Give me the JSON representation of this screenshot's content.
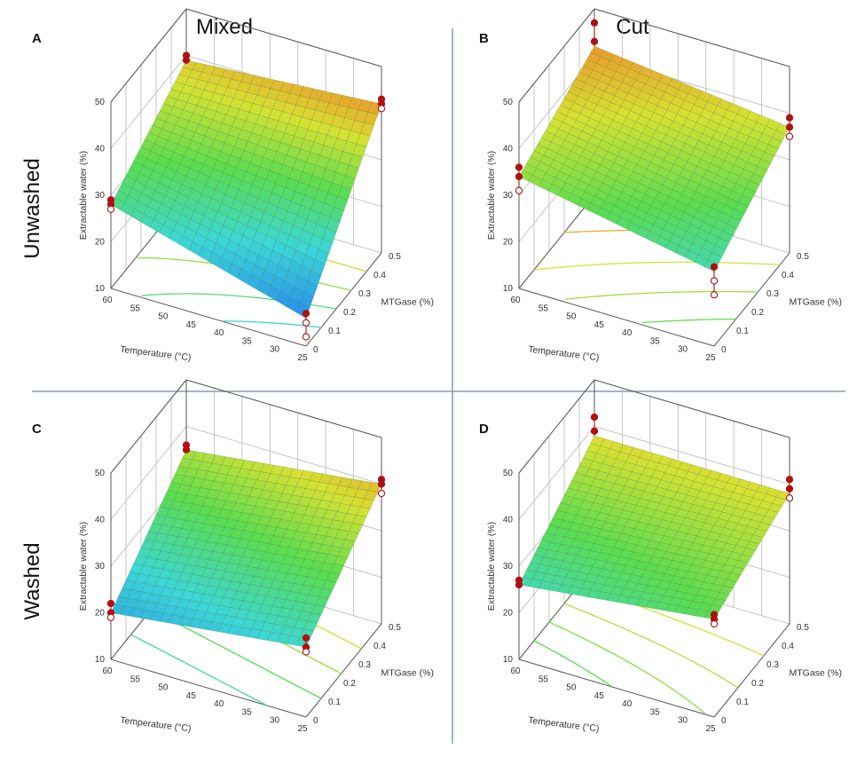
{
  "figure": {
    "column_headers": [
      "Mixed",
      "Cut"
    ],
    "row_headers": [
      "Unwashed",
      "Washed"
    ],
    "divider_color": "#7f9bc0"
  },
  "chart_data": [
    {
      "type": "surface3d",
      "panel_label": "A",
      "row": "Unwashed",
      "column": "Mixed",
      "xlabel": "Temperature (°C)",
      "ylabel": "MTGase (%)",
      "zlabel": "Extractable water (%)",
      "x_ticks": [
        60,
        55,
        50,
        45,
        40,
        35,
        30,
        25
      ],
      "y_ticks": [
        0,
        0.1,
        0.2,
        0.3,
        0.4,
        0.5
      ],
      "z_ticks": [
        10,
        20,
        30,
        40,
        50
      ],
      "xlim": [
        25,
        60
      ],
      "ylim": [
        0,
        0.5
      ],
      "zlim": [
        10,
        50
      ],
      "corner_values": {
        "t60_m0": 28,
        "t25_m0": 16,
        "t25_m05": 42,
        "t60_m05": 39
      },
      "design_points": [
        {
          "temperature": 60,
          "mtgase": 0,
          "values": [
            28,
            29,
            27
          ]
        },
        {
          "temperature": 25,
          "mtgase": 0,
          "values": [
            17,
            15,
            12
          ]
        },
        {
          "temperature": 25,
          "mtgase": 0.5,
          "values": [
            43,
            42,
            41
          ]
        },
        {
          "temperature": 60,
          "mtgase": 0.5,
          "values": [
            40,
            39
          ]
        }
      ]
    },
    {
      "type": "surface3d",
      "panel_label": "B",
      "row": "Unwashed",
      "column": "Cut",
      "xlabel": "Temperature (°C)",
      "ylabel": "MTGase (%)",
      "zlabel": "Extractable water (%)",
      "x_ticks": [
        60,
        55,
        50,
        45,
        40,
        35,
        30,
        25
      ],
      "y_ticks": [
        0,
        0.1,
        0.2,
        0.3,
        0.4,
        0.5
      ],
      "z_ticks": [
        10,
        20,
        30,
        40,
        50
      ],
      "xlim": [
        25,
        60
      ],
      "ylim": [
        0,
        0.5
      ],
      "zlim": [
        10,
        50
      ],
      "corner_values": {
        "t60_m0": 34,
        "t25_m0": 26,
        "t25_m05": 37,
        "t60_m05": 42
      },
      "design_points": [
        {
          "temperature": 60,
          "mtgase": 0,
          "values": [
            36,
            34,
            31
          ]
        },
        {
          "temperature": 25,
          "mtgase": 0,
          "values": [
            27,
            24,
            21
          ]
        },
        {
          "temperature": 25,
          "mtgase": 0.5,
          "values": [
            39,
            37,
            35
          ]
        },
        {
          "temperature": 60,
          "mtgase": 0.5,
          "values": [
            47,
            43
          ]
        }
      ]
    },
    {
      "type": "surface3d",
      "panel_label": "C",
      "row": "Washed",
      "column": "Mixed",
      "xlabel": "Temperature (°C)",
      "ylabel": "MTGase (%)",
      "zlabel": "Extractable water (%)",
      "x_ticks": [
        60,
        55,
        50,
        45,
        40,
        35,
        30,
        25
      ],
      "y_ticks": [
        0,
        0.1,
        0.2,
        0.3,
        0.4,
        0.5
      ],
      "z_ticks": [
        10,
        20,
        30,
        40,
        50
      ],
      "xlim": [
        25,
        60
      ],
      "ylim": [
        0,
        0.5
      ],
      "zlim": [
        10,
        50
      ],
      "corner_values": {
        "t60_m0": 20,
        "t25_m0": 25,
        "t25_m05": 40,
        "t60_m05": 35
      },
      "design_points": [
        {
          "temperature": 60,
          "mtgase": 0,
          "values": [
            22,
            20,
            19
          ]
        },
        {
          "temperature": 25,
          "mtgase": 0,
          "values": [
            27,
            25,
            24
          ]
        },
        {
          "temperature": 25,
          "mtgase": 0.5,
          "values": [
            41,
            40,
            38
          ]
        },
        {
          "temperature": 60,
          "mtgase": 0.5,
          "values": [
            36,
            35
          ]
        }
      ]
    },
    {
      "type": "surface3d",
      "panel_label": "D",
      "row": "Washed",
      "column": "Cut",
      "xlabel": "Temperature (°C)",
      "ylabel": "MTGase (%)",
      "zlabel": "Extractable water (%)",
      "x_ticks": [
        60,
        55,
        50,
        45,
        40,
        35,
        30,
        25
      ],
      "y_ticks": [
        0,
        0.1,
        0.2,
        0.3,
        0.4,
        0.5
      ],
      "z_ticks": [
        10,
        20,
        30,
        40,
        50
      ],
      "xlim": [
        25,
        60
      ],
      "ylim": [
        0,
        0.5
      ],
      "zlim": [
        10,
        50
      ],
      "corner_values": {
        "t60_m0": 26,
        "t25_m0": 31,
        "t25_m05": 38,
        "t60_m05": 38
      },
      "design_points": [
        {
          "temperature": 60,
          "mtgase": 0,
          "values": [
            27,
            26
          ]
        },
        {
          "temperature": 25,
          "mtgase": 0,
          "values": [
            32,
            31,
            30
          ]
        },
        {
          "temperature": 25,
          "mtgase": 0.5,
          "values": [
            41,
            39,
            37
          ]
        },
        {
          "temperature": 60,
          "mtgase": 0.5,
          "values": [
            42,
            39
          ]
        }
      ]
    }
  ]
}
